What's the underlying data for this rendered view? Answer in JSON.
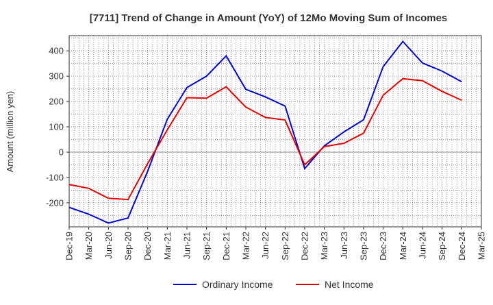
{
  "chart_data": {
    "type": "line",
    "title": "[7711]  Trend of Change in Amount (YoY) of 12Mo Moving Sum of Incomes",
    "xlabel": "",
    "ylabel": "Amount (million yen)",
    "ylim": [
      -295,
      460
    ],
    "yticks": [
      400,
      300,
      200,
      100,
      0,
      -100,
      -200
    ],
    "ytick_labels": [
      "400",
      "300",
      "200",
      "100",
      "0",
      "-100",
      "-200"
    ],
    "categories": [
      "Dec-19",
      "Mar-20",
      "Jun-20",
      "Sep-20",
      "Dec-20",
      "Mar-21",
      "Jun-21",
      "Sep-21",
      "Dec-21",
      "Mar-22",
      "Jun-22",
      "Sep-22",
      "Dec-22",
      "Mar-23",
      "Jun-23",
      "Sep-23",
      "Dec-23",
      "Mar-24",
      "Jun-24",
      "Sep-24",
      "Dec-24",
      "Mar-25"
    ],
    "series": [
      {
        "name": "Ordinary Income",
        "color": "#0000cc",
        "values": [
          -218,
          -245,
          -280,
          -260,
          -75,
          130,
          255,
          300,
          380,
          248,
          218,
          182,
          -65,
          25,
          80,
          128,
          338,
          437,
          352,
          320,
          278,
          null
        ]
      },
      {
        "name": "Net Income",
        "color": "#e00000",
        "values": [
          -128,
          -143,
          -182,
          -187,
          -45,
          88,
          215,
          213,
          258,
          178,
          137,
          127,
          -50,
          22,
          35,
          75,
          225,
          290,
          282,
          240,
          205,
          null
        ]
      }
    ],
    "grid": true,
    "legend_position": "bottom"
  }
}
